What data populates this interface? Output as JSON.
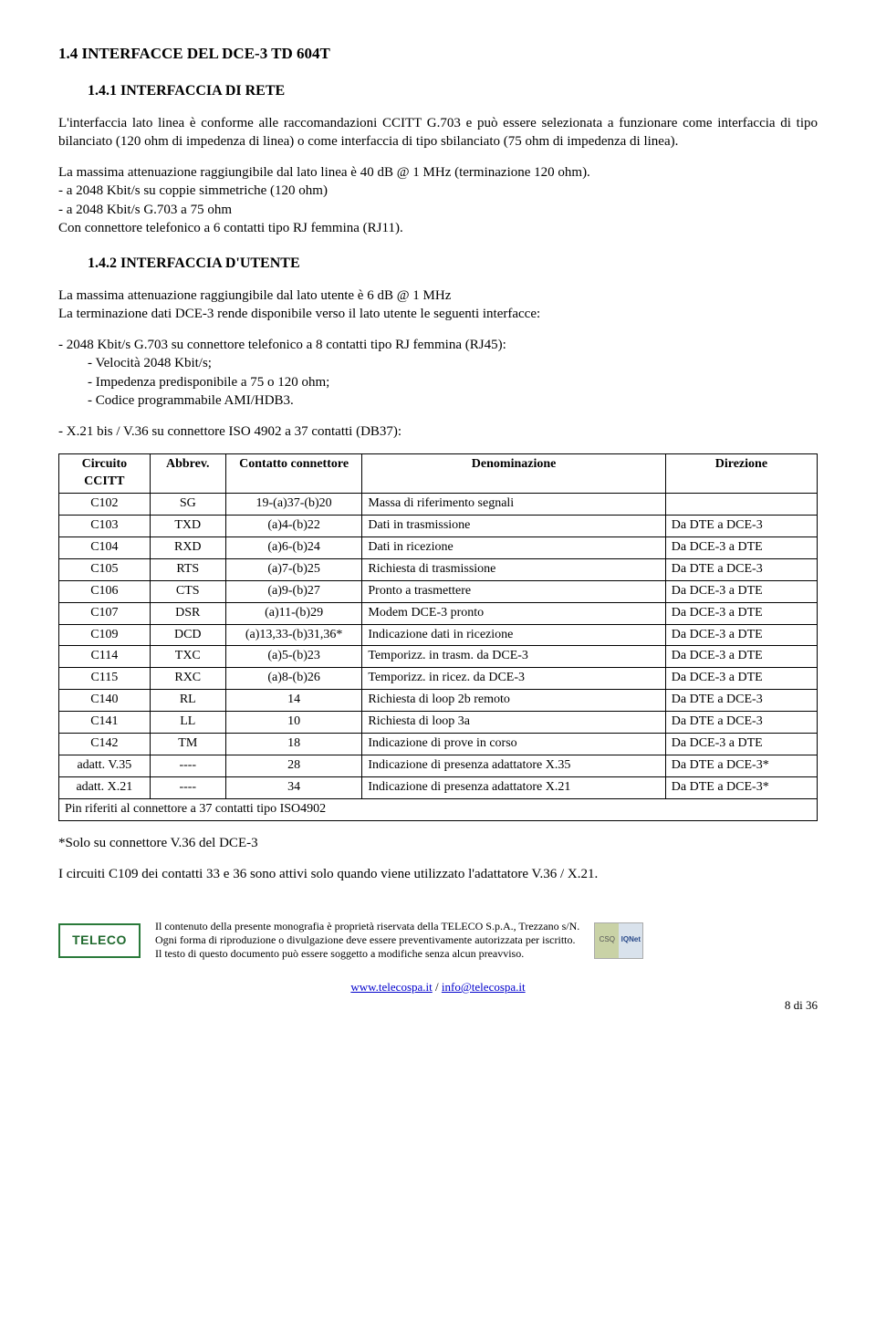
{
  "heading_main": "1.4  INTERFACCE DEL DCE-3  TD 604T",
  "sub1": {
    "title": "1.4.1  INTERFACCIA DI RETE",
    "p1": "L'interfaccia lato linea è conforme alle raccomandazioni CCITT G.703 e può essere selezionata a funzionare come interfaccia di tipo bilanciato (120 ohm di impedenza di linea) o come interfaccia di tipo sbilanciato (75 ohm di impedenza di linea).",
    "p2": "La massima attenuazione raggiungibile dal lato linea è 40 dB @ 1 MHz (terminazione 120 ohm).",
    "l1": "- a 2048 Kbit/s su coppie simmetriche (120 ohm)",
    "l2": "- a 2048 Kbit/s G.703 a 75 ohm",
    "p3": "Con connettore telefonico a 6 contatti tipo RJ femmina (RJ11)."
  },
  "sub2": {
    "title": "1.4.2  INTERFACCIA D'UTENTE",
    "p1": "La massima attenuazione raggiungibile dal lato utente è 6 dB @ 1 MHz",
    "p2": "La terminazione dati DCE-3 rende disponibile verso il lato utente le seguenti interfacce:",
    "p3": "- 2048 Kbit/s G.703 su connettore telefonico a 8 contatti tipo RJ femmina (RJ45):",
    "b1": "Velocità 2048 Kbit/s;",
    "b2": "Impedenza predisponibile a 75 o 120 ohm;",
    "b3": "Codice programmabile AMI/HDB3.",
    "p4": "- X.21 bis / V.36 su connettore ISO 4902 a 37 contatti (DB37):"
  },
  "table": {
    "headers": [
      "Circuito CCITT",
      "Abbrev.",
      "Contatto connettore",
      "Denominazione",
      "Direzione"
    ],
    "col_widths": [
      "12%",
      "10%",
      "18%",
      "40%",
      "20%"
    ],
    "rows": [
      [
        "C102",
        "SG",
        "19-(a)37-(b)20",
        "Massa di riferimento segnali",
        ""
      ],
      [
        "C103",
        "TXD",
        "(a)4-(b)22",
        "Dati in trasmissione",
        "Da DTE a DCE-3"
      ],
      [
        "C104",
        "RXD",
        "(a)6-(b)24",
        "Dati in ricezione",
        "Da DCE-3 a DTE"
      ],
      [
        "C105",
        "RTS",
        "(a)7-(b)25",
        "Richiesta di trasmissione",
        "Da DTE a DCE-3"
      ],
      [
        "C106",
        "CTS",
        "(a)9-(b)27",
        "Pronto a trasmettere",
        "Da DCE-3 a DTE"
      ],
      [
        "C107",
        "DSR",
        "(a)11-(b)29",
        "Modem DCE-3 pronto",
        "Da DCE-3 a DTE"
      ],
      [
        "C109",
        "DCD",
        "(a)13,33-(b)31,36*",
        "Indicazione dati in ricezione",
        "Da DCE-3 a DTE"
      ],
      [
        "C114",
        "TXC",
        "(a)5-(b)23",
        "Temporizz. in trasm. da DCE-3",
        "Da DCE-3 a DTE"
      ],
      [
        "C115",
        "RXC",
        "(a)8-(b)26",
        "Temporizz. in ricez. da DCE-3",
        "Da DCE-3 a DTE"
      ],
      [
        "C140",
        "RL",
        "14",
        "Richiesta di loop 2b remoto",
        "Da DTE a DCE-3"
      ],
      [
        "C141",
        "LL",
        "10",
        "Richiesta di loop 3a",
        "Da DTE a DCE-3"
      ],
      [
        "C142",
        "TM",
        "18",
        "Indicazione di prove in corso",
        "Da DCE-3 a DTE"
      ],
      [
        "adatt. V.35",
        "----",
        "28",
        "Indicazione di presenza adattatore X.35",
        "Da DTE a DCE-3*"
      ],
      [
        "adatt. X.21",
        "----",
        "34",
        "Indicazione di presenza adattatore X.21",
        "Da DTE a DCE-3*"
      ]
    ],
    "footer": "Pin riferiti al connettore a 37 contatti tipo ISO4902"
  },
  "after": {
    "p1": "*Solo su connettore V.36 del DCE-3",
    "p2": "I circuiti C109 dei contatti 33 e 36 sono attivi solo quando viene utilizzato l'adattatore V.36 / X.21."
  },
  "footer": {
    "logo": "TELECO",
    "l1": "Il contenuto della presente monografia è proprietà riservata della TELECO S.p.A., Trezzano s/N.",
    "l2": "Ogni forma di riproduzione o divulgazione deve essere preventivamente autorizzata per iscritto.",
    "l3": "Il testo di questo documento può essere soggetto a modifiche senza alcun preavviso.",
    "cert_left": "CSQ",
    "cert_right": "IQNet",
    "link1": "www.telecospa.it",
    "sep": " / ",
    "link2": "info@telecospa.it",
    "pagenum": "8 di 36"
  }
}
